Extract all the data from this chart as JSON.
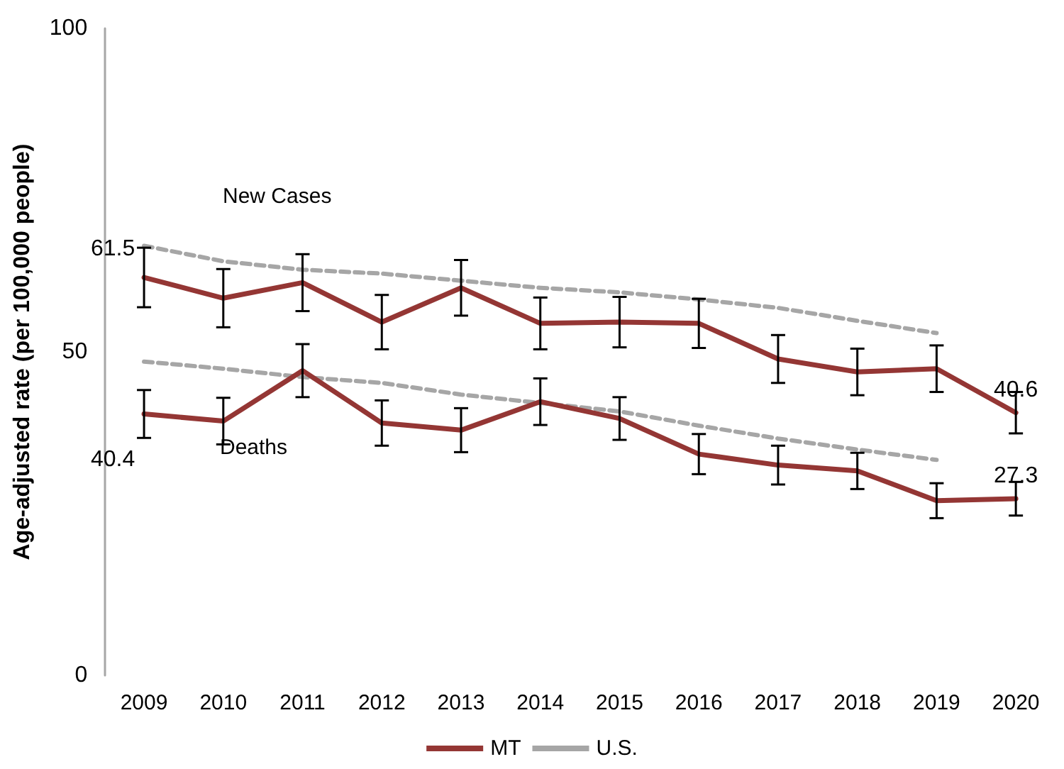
{
  "chart_data": {
    "type": "line",
    "ylabel": "Age-adjusted rate (per 100,000 people)",
    "categories": [
      "2009",
      "2010",
      "2011",
      "2012",
      "2013",
      "2014",
      "2015",
      "2016",
      "2017",
      "2018",
      "2019",
      "2020"
    ],
    "series": [
      {
        "name": "MT",
        "color": "#943634",
        "line_style": "solid",
        "values": [
          61.5,
          58.3,
          60.7,
          54.6,
          59.9,
          54.4,
          54.6,
          54.4,
          48.9,
          46.9,
          47.4,
          40.6
        ],
        "errors": [
          4.6,
          4.5,
          4.4,
          4.2,
          4.3,
          4,
          3.9,
          3.8,
          3.7,
          3.6,
          3.6,
          3.2
        ],
        "value_labels": [
          "61.5",
          null,
          null,
          null,
          null,
          null,
          null,
          null,
          null,
          null,
          null,
          "40.6"
        ]
      },
      {
        "color": "#943634",
        "line_style": "solid",
        "values": [
          40.4,
          39.3,
          47.1,
          39.0,
          37.9,
          42.3,
          39.7,
          34.2,
          32.5,
          31.6,
          27.0,
          27.3
        ],
        "errors": [
          3.7,
          3.6,
          4.1,
          3.5,
          3.4,
          3.6,
          3.3,
          3.1,
          3,
          2.8,
          2.7,
          2.6
        ],
        "value_labels": [
          "40.4",
          null,
          null,
          null,
          null,
          null,
          null,
          null,
          null,
          null,
          null,
          "27.3"
        ]
      },
      {
        "name": "U.S.",
        "color": "#a6a6a6",
        "line_style": "dashed",
        "values": [
          66.4,
          64.0,
          62.7,
          62.1,
          61.0,
          59.9,
          59.2,
          58.1,
          56.8,
          54.8,
          52.9,
          null
        ]
      },
      {
        "color": "#a6a6a6",
        "line_style": "dashed",
        "values": [
          48.5,
          47.4,
          46.1,
          45.2,
          43.4,
          42.1,
          40.8,
          38.6,
          36.6,
          34.9,
          33.3,
          null
        ]
      }
    ],
    "annotations": [
      "New Cases",
      "Deaths"
    ],
    "ylim": [
      0,
      100
    ],
    "yticks": [
      0,
      50,
      100
    ],
    "grid": false,
    "legend": "bottom",
    "marker": "none"
  }
}
